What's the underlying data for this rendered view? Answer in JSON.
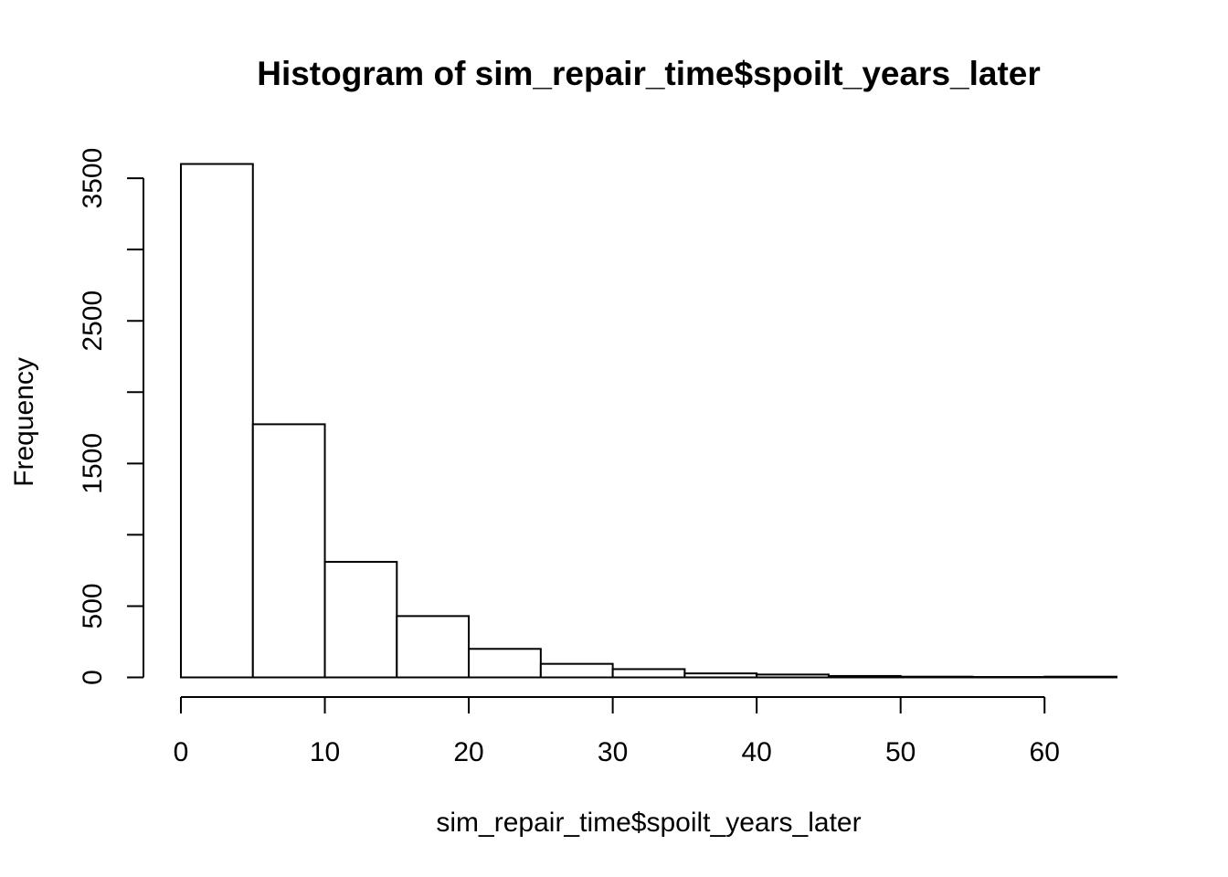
{
  "chart_data": {
    "type": "bar",
    "title": "Histogram of sim_repair_time$spoilt_years_later",
    "xlabel": "sim_repair_time$spoilt_years_later",
    "ylabel": "Frequency",
    "bin_edges": [
      0,
      5,
      10,
      15,
      20,
      25,
      30,
      35,
      40,
      45,
      50,
      55,
      60,
      65
    ],
    "values": [
      3600,
      1775,
      810,
      430,
      200,
      95,
      58,
      28,
      20,
      10,
      5,
      3,
      5
    ],
    "xlim": [
      0,
      65
    ],
    "ylim": [
      0,
      3600
    ],
    "x_ticks": [
      0,
      10,
      20,
      30,
      40,
      50,
      60
    ],
    "x_tick_labels": [
      "0",
      "10",
      "20",
      "30",
      "40",
      "50",
      "60"
    ],
    "y_ticks": [
      0,
      500,
      1000,
      1500,
      2000,
      2500,
      3000,
      3500
    ],
    "y_tick_labels": [
      "0",
      "500",
      "",
      "1500",
      "",
      "2500",
      "",
      "3500"
    ],
    "x_axis_range": [
      0,
      60
    ],
    "y_axis_range": [
      0,
      3500
    ],
    "grid": false,
    "colors": {
      "bar_fill": "#ffffff",
      "bar_stroke": "#000000",
      "axis": "#000000",
      "background": "#ffffff"
    }
  }
}
